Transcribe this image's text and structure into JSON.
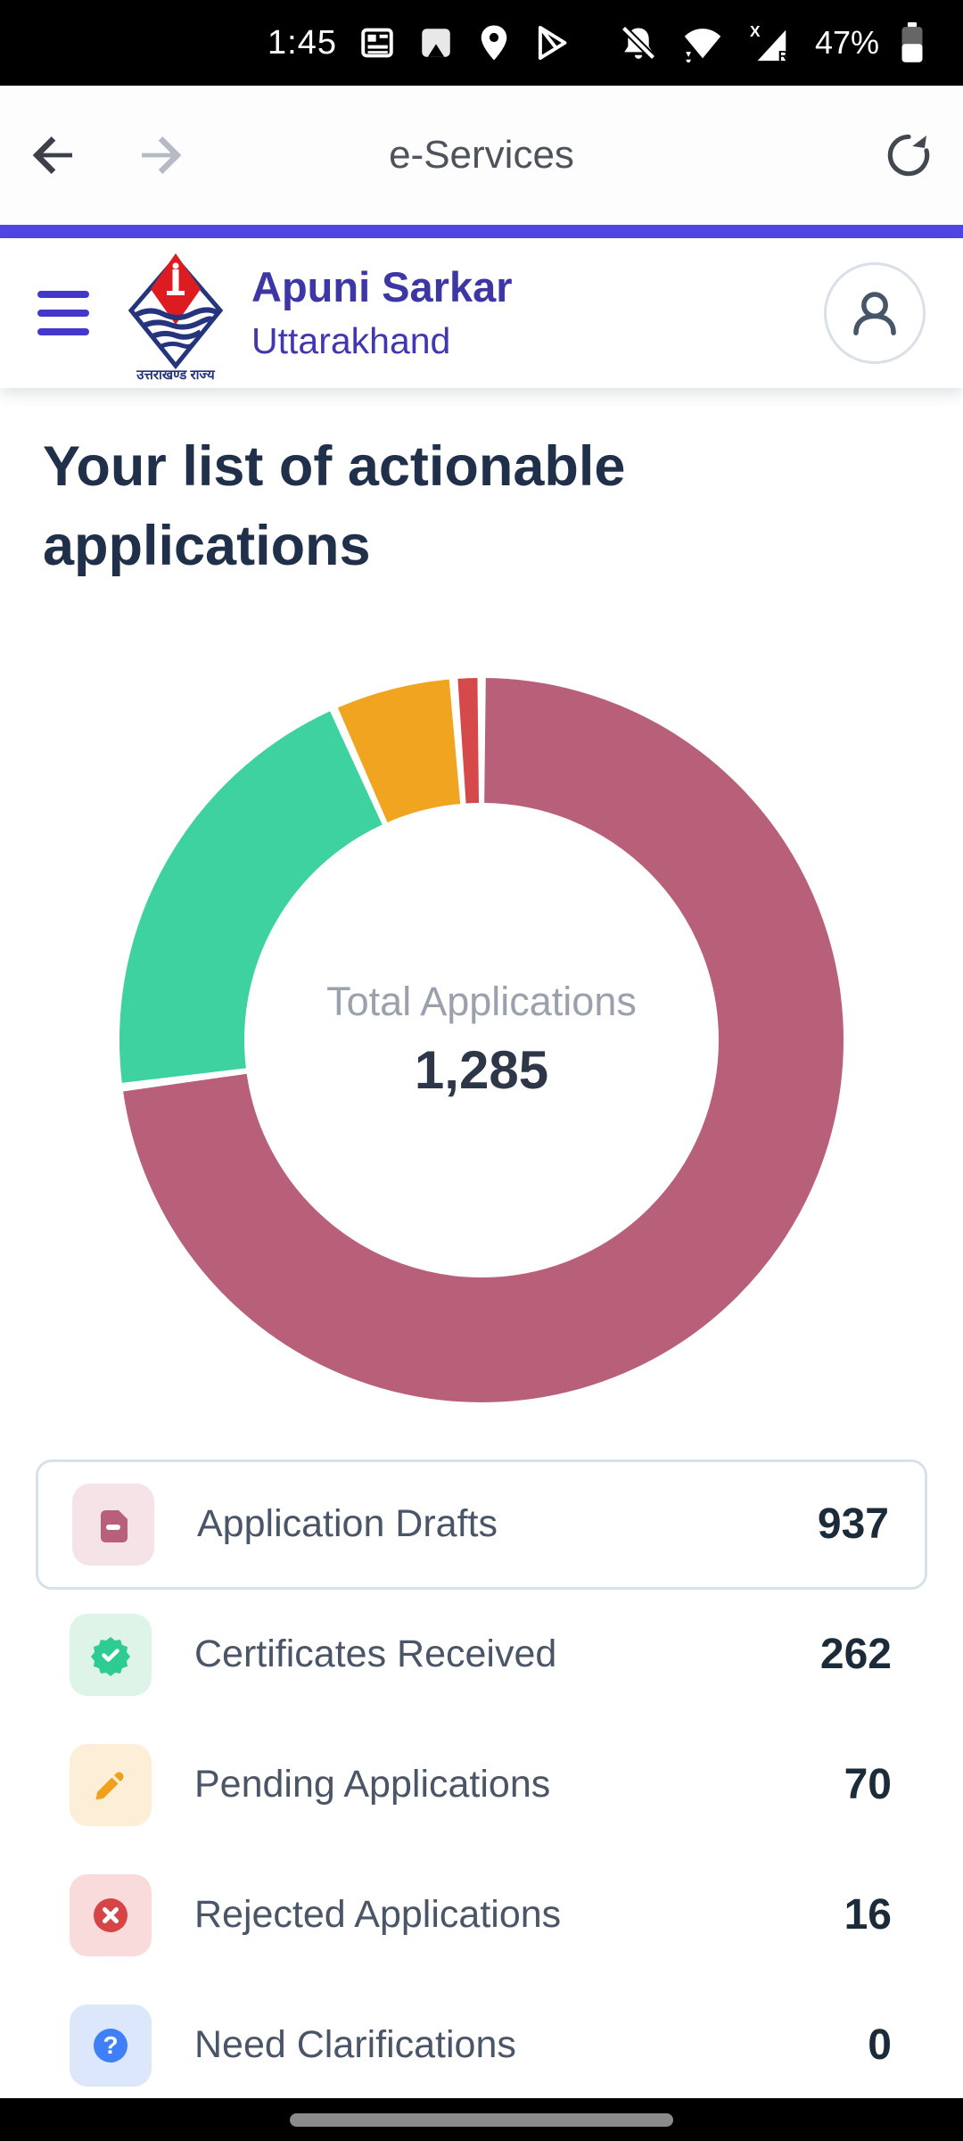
{
  "status_bar": {
    "time": "1:45",
    "battery": "47%",
    "signal_x": "X",
    "signal_roaming": "R",
    "icons": [
      "news-icon",
      "photos-icon",
      "location-icon",
      "play-store-icon",
      "notifications-off-icon",
      "wifi-icon",
      "cellular-signal-icon",
      "battery-icon"
    ]
  },
  "browser": {
    "title": "e-Services"
  },
  "header": {
    "app_name": "Apuni Sarkar",
    "state": "Uttarakhand",
    "logo_text": "उत्तराखण्ड राज्य"
  },
  "main": {
    "heading": "Your list of actionable applications"
  },
  "chart_data": {
    "type": "pie",
    "subtype": "donut",
    "center_label": "Total Applications",
    "total": 1285,
    "total_display": "1,285",
    "categories": [
      "Application Drafts",
      "Certificates Received",
      "Pending Applications",
      "Rejected Applications",
      "Need Clarifications"
    ],
    "values": [
      937,
      262,
      70,
      16,
      0
    ],
    "colors": [
      "#b85f79",
      "#3ed2a0",
      "#f1a41f",
      "#d5494b",
      "#3f7ff7"
    ],
    "start_angle": "top",
    "direction": "clockwise",
    "inner_radius_ratio": 0.655,
    "legend": "none"
  },
  "stats": {
    "items": [
      {
        "label": "Application Drafts",
        "value": "937",
        "icon": "draft-note-icon",
        "tile_bg": "#f5e3e7",
        "icon_color": "#b85f79",
        "highlighted": true
      },
      {
        "label": "Certificates Received",
        "value": "262",
        "icon": "badge-check-icon",
        "tile_bg": "#def4e9",
        "icon_color": "#2ecc92",
        "highlighted": false
      },
      {
        "label": "Pending Applications",
        "value": "70",
        "icon": "pencil-icon",
        "tile_bg": "#fdeed8",
        "icon_color": "#f0a11b",
        "highlighted": false
      },
      {
        "label": "Rejected Applications",
        "value": "16",
        "icon": "circle-x-icon",
        "tile_bg": "#fadbdb",
        "icon_color": "#d64545",
        "highlighted": false
      },
      {
        "label": "Need Clarifications",
        "value": "0",
        "icon": "circle-question-icon",
        "tile_bg": "#dce7fb",
        "icon_color": "#3f7ff7",
        "highlighted": false,
        "icon_glyph": "?"
      }
    ]
  }
}
